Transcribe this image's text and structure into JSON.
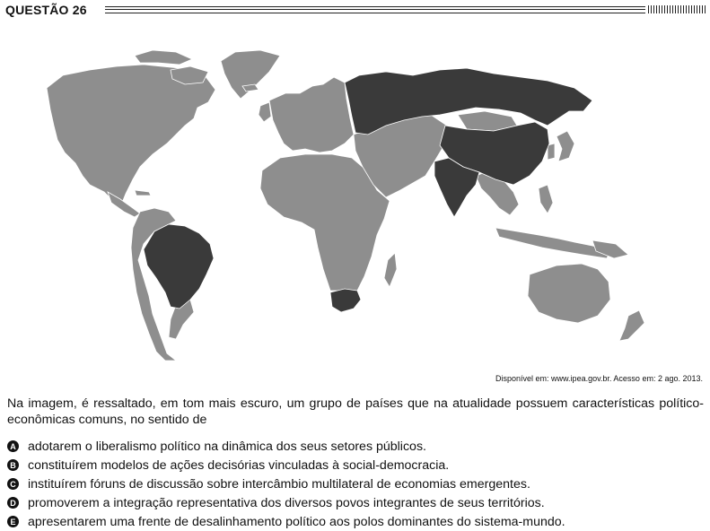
{
  "header": {
    "title": "QUESTÃO 26"
  },
  "map": {
    "colors": {
      "background": "#ffffff",
      "light": "#8e8e8e",
      "dark": "#3a3a3a",
      "border": "#ffffff"
    },
    "highlighted_countries": [
      "Brasil",
      "Rússia",
      "Índia",
      "China",
      "África do Sul"
    ]
  },
  "source": "Disponível em: www.ipea.gov.br. Acesso em: 2 ago. 2013.",
  "stem": "Na imagem, é ressaltado, em tom mais escuro, um grupo de países que na atualidade possuem características político-econômicas comuns, no sentido de",
  "options": [
    {
      "letter": "A",
      "text": "adotarem o liberalismo político na dinâmica dos seus setores públicos."
    },
    {
      "letter": "B",
      "text": "constituírem modelos de ações decisórias vinculadas à social-democracia."
    },
    {
      "letter": "C",
      "text": "instituírem fóruns de discussão sobre intercâmbio multilateral de economias emergentes."
    },
    {
      "letter": "D",
      "text": "promoverem a integração representativa dos diversos povos integrantes de seus territórios."
    },
    {
      "letter": "E",
      "text": "apresentarem uma frente de desalinhamento político aos polos dominantes do sistema-mundo."
    }
  ]
}
